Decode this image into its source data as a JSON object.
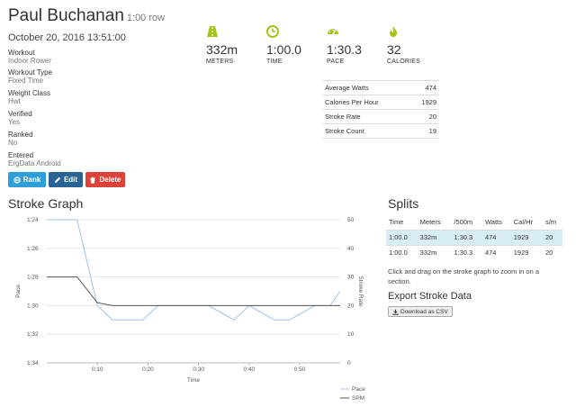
{
  "header": {
    "name": "Paul Buchanan",
    "subtitle": "1:00 row"
  },
  "date": "October 20, 2016 13:51:00",
  "meta": [
    {
      "label": "Workout",
      "value": "Indoor Rower"
    },
    {
      "label": "Workout Type",
      "value": "Fixed Time"
    },
    {
      "label": "Weight Class",
      "value": "Hwt"
    },
    {
      "label": "Verified",
      "value": "Yes"
    },
    {
      "label": "Ranked",
      "value": "No"
    },
    {
      "label": "Entered",
      "value": "ErgData Android"
    }
  ],
  "buttons": {
    "rank": "Rank",
    "edit": "Edit",
    "delete": "Delete"
  },
  "colors": {
    "accent": "#a4c31a",
    "rank": "#2f9fd9",
    "edit": "#2a6496",
    "delete": "#d9433a",
    "pace": "#9cc3e8",
    "spm": "#555555"
  },
  "stats": [
    {
      "icon": "road-icon",
      "value": "332m",
      "label": "METERS"
    },
    {
      "icon": "clock-icon",
      "value": "1:00.0",
      "label": "TIME"
    },
    {
      "icon": "speedometer-icon",
      "value": "1:30.3",
      "label": "PACE"
    },
    {
      "icon": "flame-icon",
      "value": "32",
      "label": "CALORIES"
    }
  ],
  "averages": [
    {
      "label": "Average Watts",
      "value": "474"
    },
    {
      "label": "Calories Per Hour",
      "value": "1929"
    },
    {
      "label": "Stroke Rate",
      "value": "20"
    },
    {
      "label": "Stroke Count",
      "value": "19"
    }
  ],
  "stroke_graph_title": "Stroke Graph",
  "splits_title": "Splits",
  "splits": {
    "headers": [
      "Time",
      "Meters",
      "/500m",
      "Watts",
      "Cal/Hr",
      "s/m"
    ],
    "rows": [
      [
        "1:00.0",
        "332m",
        "1:30.3",
        "474",
        "1929",
        "20"
      ],
      [
        "1:00.0",
        "332m",
        "1:30.3",
        "474",
        "1929",
        "20"
      ]
    ]
  },
  "hint": "Click and drag on the stroke graph to zoom in on a section.",
  "export_title": "Export Stroke Data",
  "download_label": "Download as CSV",
  "chart_data": {
    "type": "line",
    "xlabel": "Time",
    "ylabel_left": "Pace",
    "ylabel_right": "Stroke Rate",
    "x_ticks": [
      "0:10",
      "0:20",
      "0:30",
      "0:40",
      "0:50"
    ],
    "y_left_ticks": [
      "1:24",
      "1:26",
      "1:28",
      "1:30",
      "1:32",
      "1:34"
    ],
    "y_right_ticks": [
      "50",
      "40",
      "30",
      "20",
      "10",
      "0"
    ],
    "xlim": [
      0,
      58
    ],
    "y_left_lim_seconds": [
      84,
      94
    ],
    "y_right_lim": [
      0,
      50
    ],
    "series": [
      {
        "name": "Pace",
        "axis": "left",
        "x": [
          0,
          3,
          6,
          10,
          13,
          19,
          22,
          28,
          32,
          37,
          40,
          45,
          48,
          53,
          56,
          58
        ],
        "y_seconds": [
          84,
          84,
          84,
          90,
          91,
          91,
          90,
          90,
          90,
          91,
          90,
          91,
          91,
          90,
          90,
          89
        ]
      },
      {
        "name": "SPM",
        "axis": "left_scale_right",
        "x": [
          0,
          3,
          6,
          10,
          13,
          19,
          22,
          28,
          32,
          37,
          40,
          45,
          48,
          53,
          56,
          58
        ],
        "y": [
          30,
          30,
          30,
          21,
          20,
          20,
          20,
          20,
          20,
          20,
          20,
          20,
          20,
          20,
          20,
          20
        ]
      }
    ],
    "legend": [
      "Pace",
      "SPM"
    ]
  }
}
